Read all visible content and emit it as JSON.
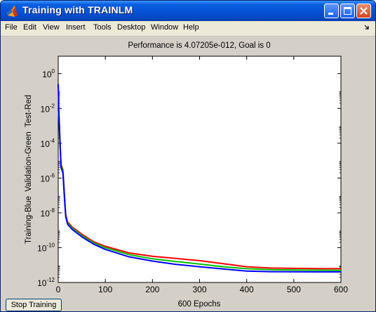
{
  "window": {
    "title": "Training with TRAINLM",
    "menu": [
      "File",
      "Edit",
      "View",
      "Insert",
      "Tools",
      "Desktop",
      "Window",
      "Help"
    ],
    "icons": {
      "app": "matlab-logo-icon",
      "minimize": "minimize-icon",
      "maximize": "maximize-icon",
      "close": "close-icon",
      "dock": "dock-arrow-icon"
    }
  },
  "stop_button": {
    "label": "Stop Training"
  },
  "chart_data": {
    "type": "line",
    "title": "Performance is 4.07205e-012, Goal is 0",
    "xlabel": "600 Epochs",
    "ylabel": "Training-Blue  Validation-Green  Test-Red",
    "xlim": [
      0,
      600
    ],
    "ylim": [
      1e-12,
      10
    ],
    "yscale": "log",
    "grid": false,
    "xticks": [
      0,
      100,
      200,
      300,
      400,
      500,
      600
    ],
    "xtick_labels": [
      "0",
      "100",
      "200",
      "300",
      "400",
      "500",
      "600"
    ],
    "yticks": [
      1e-12,
      1e-10,
      1e-08,
      1e-06,
      0.0001,
      0.01,
      1
    ],
    "ytick_labels": [
      {
        "base": "10",
        "exp": "-12"
      },
      {
        "base": "10",
        "exp": "-10"
      },
      {
        "base": "10",
        "exp": "-8"
      },
      {
        "base": "10",
        "exp": "-6"
      },
      {
        "base": "10",
        "exp": "-4"
      },
      {
        "base": "10",
        "exp": "-2"
      },
      {
        "base": "10",
        "exp": "0"
      }
    ],
    "series": [
      {
        "name": "Test",
        "color": "#ff0000",
        "points": [
          [
            0,
            0.01
          ],
          [
            2,
            0.003
          ],
          [
            4,
            0.0001
          ],
          [
            6,
            6e-06
          ],
          [
            10,
            3e-06
          ],
          [
            13,
            1.5e-07
          ],
          [
            16,
            8e-09
          ],
          [
            20,
            3e-09
          ],
          [
            30,
            1.5e-09
          ],
          [
            50,
            6e-10
          ],
          [
            75,
            2.2e-10
          ],
          [
            100,
            1.2e-10
          ],
          [
            150,
            5e-11
          ],
          [
            200,
            3.2e-11
          ],
          [
            250,
            2.4e-11
          ],
          [
            300,
            1.8e-11
          ],
          [
            350,
            1.2e-11
          ],
          [
            400,
            8e-12
          ],
          [
            450,
            6.8e-12
          ],
          [
            500,
            6.5e-12
          ],
          [
            550,
            6.3e-12
          ],
          [
            600,
            6.2e-12
          ]
        ]
      },
      {
        "name": "Validation",
        "color": "#00c000",
        "points": [
          [
            0,
            0.008
          ],
          [
            2,
            0.002
          ],
          [
            4,
            9e-05
          ],
          [
            6,
            5e-06
          ],
          [
            10,
            2.5e-06
          ],
          [
            13,
            1.2e-07
          ],
          [
            16,
            7e-09
          ],
          [
            20,
            2.5e-09
          ],
          [
            30,
            1.3e-09
          ],
          [
            50,
            5e-10
          ],
          [
            75,
            1.9e-10
          ],
          [
            100,
            1e-10
          ],
          [
            150,
            4e-11
          ],
          [
            200,
            2.3e-11
          ],
          [
            250,
            1.6e-11
          ],
          [
            300,
            1.15e-11
          ],
          [
            350,
            8e-12
          ],
          [
            400,
            6.2e-12
          ],
          [
            450,
            5.5e-12
          ],
          [
            500,
            5.2e-12
          ],
          [
            550,
            5.1e-12
          ],
          [
            600,
            5e-12
          ]
        ]
      },
      {
        "name": "Training",
        "color": "#0000ff",
        "points": [
          [
            0,
            0.25
          ],
          [
            2,
            0.002
          ],
          [
            4,
            7e-05
          ],
          [
            6,
            4e-06
          ],
          [
            10,
            2e-06
          ],
          [
            13,
            9e-08
          ],
          [
            16,
            6e-09
          ],
          [
            20,
            2.2e-09
          ],
          [
            30,
            1.1e-09
          ],
          [
            50,
            4.2e-10
          ],
          [
            75,
            1.6e-10
          ],
          [
            100,
            8e-11
          ],
          [
            150,
            3e-11
          ],
          [
            200,
            1.7e-11
          ],
          [
            250,
            1.1e-11
          ],
          [
            300,
            8e-12
          ],
          [
            350,
            6e-12
          ],
          [
            400,
            4.5e-12
          ],
          [
            450,
            4.2e-12
          ],
          [
            500,
            4.1e-12
          ],
          [
            550,
            4.08e-12
          ],
          [
            600,
            4.07e-12
          ]
        ]
      }
    ]
  }
}
